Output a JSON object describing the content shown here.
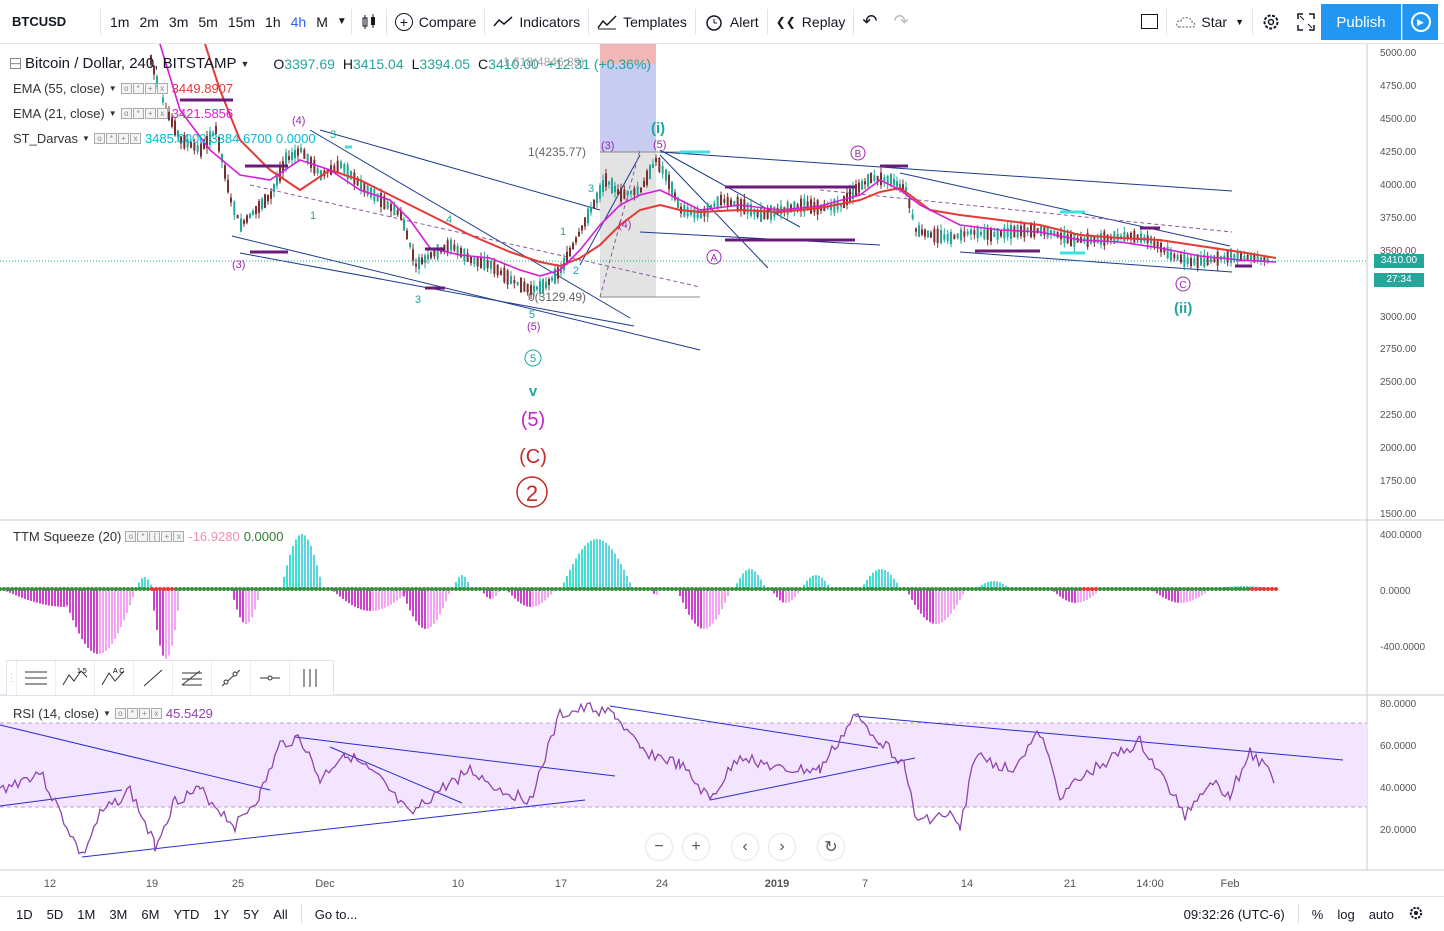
{
  "toolbar": {
    "symbol": "BTCUSD",
    "intervals": [
      "1m",
      "2m",
      "3m",
      "5m",
      "15m",
      "1h",
      "4h",
      "M"
    ],
    "active_interval": "4h",
    "compare": "Compare",
    "indicators": "Indicators",
    "templates": "Templates",
    "alert": "Alert",
    "replay": "Replay",
    "star": "Star",
    "publish": "Publish"
  },
  "legend": {
    "title": "Bitcoin / Dollar, 240, BITSTAMP",
    "o_label": "O",
    "o": "3397.69",
    "h_label": "H",
    "h": "3415.04",
    "l_label": "L",
    "l": "3394.05",
    "c_label": "C",
    "c": "3410.00",
    "change": "+12.31 (+0.36%)",
    "overlap": "1.618(4846.89)",
    "ema55": "EMA (55, close)",
    "ema55_val": "3449.8907",
    "ema21": "EMA (21, close)",
    "ema21_val": "3421.5856",
    "darvas": "ST_Darvas",
    "darvas_v1": "3485.0000",
    "darvas_v2": "3384.6700",
    "darvas_v3": "0.0000",
    "ttm": "TTM Squeeze (20)",
    "ttm_v1": "-16.9280",
    "ttm_v2": "0.0000",
    "rsi": "RSI (14, close)",
    "rsi_val": "45.5429"
  },
  "price_axis": [
    "5000.00",
    "4750.00",
    "4500.00",
    "4250.00",
    "4000.00",
    "3750.00",
    "3500.00",
    "3000.00",
    "2750.00",
    "2500.00",
    "2250.00",
    "2000.00",
    "1750.00",
    "1500.00"
  ],
  "last_price": "3410.00",
  "countdown": "27:34",
  "ttm_axis": [
    "400.0000",
    "0.0000",
    "-400.0000"
  ],
  "rsi_axis": [
    "80.0000",
    "60.0000",
    "40.0000",
    "20.0000"
  ],
  "time_axis": [
    "12",
    "19",
    "25",
    "Dec",
    "10",
    "17",
    "24",
    "2019",
    "7",
    "14",
    "21",
    "14:00",
    "Feb"
  ],
  "annotations": {
    "fib1": "1(4235.77)",
    "fib0": "0(3129.49)",
    "wave_i": "(i)",
    "wave_ii": "(ii)",
    "wave_B": "B",
    "wave_A": "A",
    "wave_C": "C",
    "circle5": "5",
    "v": "v",
    "paren5": "(5)",
    "parenC": "(C)",
    "circle2": "2",
    "p4a": "(4)",
    "p3a": "(3)",
    "p5a": "(5)",
    "p3b": "(3)",
    "p4b": "(4)",
    "p5b": "(5)",
    "n1": "1",
    "n2": "2",
    "n3": "3",
    "n4": "4",
    "n5": "5",
    "p3c": "(3)"
  },
  "bottombar": {
    "ranges": [
      "1D",
      "5D",
      "1M",
      "3M",
      "6M",
      "YTD",
      "1Y",
      "5Y",
      "All"
    ],
    "goto": "Go to...",
    "clock": "09:32:26 (UTC-6)",
    "pct": "%",
    "log": "log",
    "auto": "auto"
  },
  "colors": {
    "accent": "#2196f3",
    "ema55": "#e53935",
    "ema21": "#d81bd8",
    "darvas": "#00bcd4",
    "rsi_line": "#8e44ad",
    "rsi_band": "#f3e5ff"
  }
}
